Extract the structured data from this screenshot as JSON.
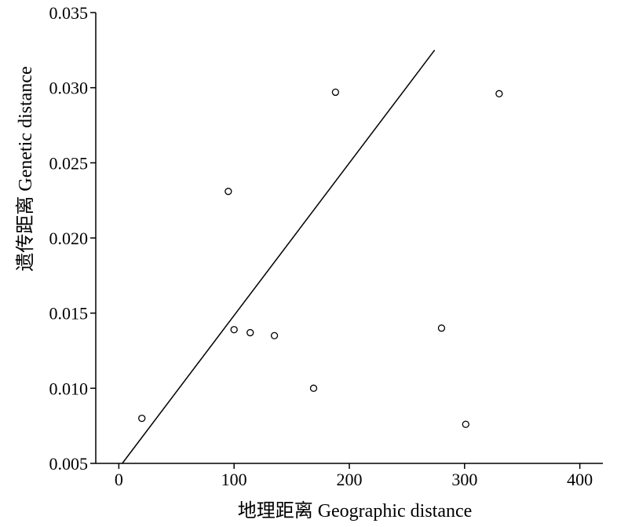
{
  "chart_data": {
    "type": "scatter",
    "xlabel": "地理距离 Geographic distance",
    "ylabel": "遗传距离 Genetic distance",
    "xlim": [
      -20,
      420
    ],
    "ylim": [
      0.005,
      0.035
    ],
    "x_ticks": [
      "0",
      "100",
      "200",
      "300",
      "400"
    ],
    "y_ticks": [
      "0.005",
      "0.010",
      "0.015",
      "0.020",
      "0.025",
      "0.030",
      "0.035"
    ],
    "x_tick_values": [
      0,
      100,
      200,
      300,
      400
    ],
    "y_tick_values": [
      0.005,
      0.01,
      0.015,
      0.02,
      0.025,
      0.03,
      0.035
    ],
    "points": [
      {
        "x": 20,
        "y": 0.008
      },
      {
        "x": 95,
        "y": 0.0231
      },
      {
        "x": 100,
        "y": 0.0139
      },
      {
        "x": 114,
        "y": 0.0137
      },
      {
        "x": 135,
        "y": 0.0135
      },
      {
        "x": 169,
        "y": 0.01
      },
      {
        "x": 188,
        "y": 0.0297
      },
      {
        "x": 280,
        "y": 0.014
      },
      {
        "x": 301,
        "y": 0.0076
      },
      {
        "x": 330,
        "y": 0.0296
      }
    ],
    "trendline": {
      "x": [
        3,
        274
      ],
      "y": [
        0.005,
        0.0325
      ]
    },
    "grid": false,
    "legend": "none"
  }
}
